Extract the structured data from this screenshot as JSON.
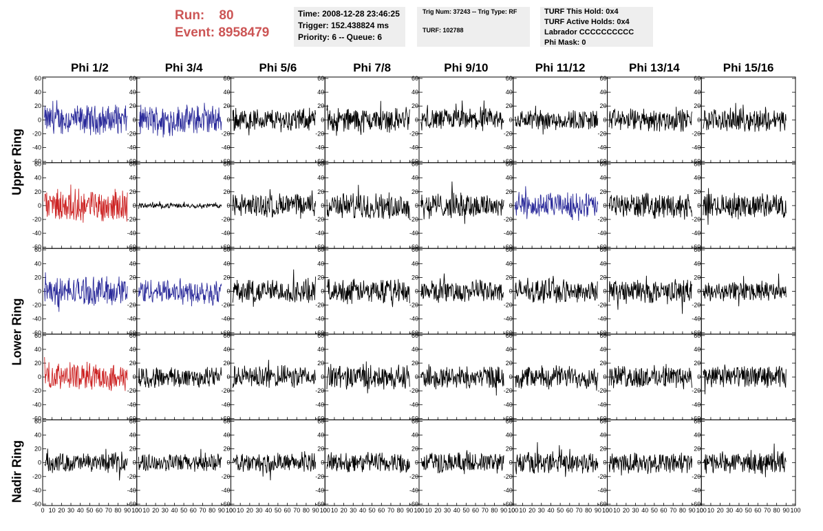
{
  "header": {
    "run_label": "Run:",
    "run_value": "80",
    "event_label": "Event:",
    "event_value": "8958479",
    "time": "Time: 2008-12-28 23:46:25",
    "trigger": "Trigger: 152.438824 ms",
    "priority": "Priority: 6 -- Queue: 6",
    "trig_num": "Trig Num: 37243 -- Trig Type: RF",
    "turf": "TURF: 102788",
    "turf_hold": "TURF This Hold: 0x4",
    "turf_active": "TURF Active Holds: 0x4",
    "labrador": "Labrador CCCCCCCCCC",
    "phi_mask": "Phi Mask: 0"
  },
  "rings": [
    "Upper Ring",
    "Lower Ring",
    "Nadir Ring"
  ],
  "colors": {
    "blue": "#2a2a9a",
    "red": "#cc2222",
    "black": "#000000"
  },
  "chart_data": {
    "type": "line",
    "columns": [
      "Phi 1/2",
      "Phi 3/4",
      "Phi 5/6",
      "Phi 7/8",
      "Phi 9/10",
      "Phi 11/12",
      "Phi 13/14",
      "Phi 15/16"
    ],
    "rows": 5,
    "xlim": [
      0,
      100
    ],
    "ylim": [
      -60,
      60
    ],
    "x_ticks": [
      "0",
      "10",
      "20",
      "30",
      "40",
      "50",
      "60",
      "70",
      "80",
      "90",
      "100"
    ],
    "y_ticks": [
      "60",
      "40",
      "20",
      "0",
      "-20",
      "-40",
      "-60"
    ],
    "panels": [
      [
        "blue",
        "blue",
        "black",
        "black",
        "black",
        "black",
        "black",
        "black"
      ],
      [
        "red",
        "black",
        "black",
        "black",
        "black",
        "blue",
        "black",
        "black"
      ],
      [
        "blue",
        "blue",
        "black",
        "black",
        "black",
        "black",
        "black",
        "black"
      ],
      [
        "red",
        "black",
        "black",
        "black",
        "black",
        "black",
        "black",
        "black"
      ],
      [
        "black",
        "black",
        "black",
        "black",
        "black",
        "black",
        "black",
        "black"
      ]
    ],
    "amplitudes": [
      [
        18,
        18,
        14,
        15,
        14,
        13,
        14,
        14
      ],
      [
        20,
        3,
        15,
        16,
        16,
        16,
        15,
        15
      ],
      [
        18,
        16,
        15,
        15,
        14,
        14,
        15,
        12
      ],
      [
        17,
        13,
        14,
        15,
        14,
        14,
        14,
        14
      ],
      [
        12,
        11,
        12,
        13,
        13,
        14,
        13,
        13
      ]
    ]
  }
}
